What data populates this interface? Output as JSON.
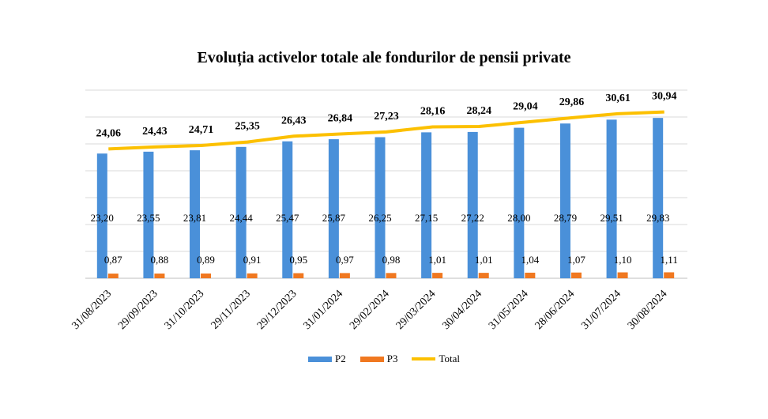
{
  "chart_data": {
    "type": "bar",
    "title": "Evoluția activelor totale ale fondurilor de pensii private",
    "categories": [
      "31/08/2023",
      "29/09/2023",
      "31/10/2023",
      "29/11/2023",
      "29/12/2023",
      "31/01/2024",
      "29/02/2024",
      "29/03/2024",
      "30/04/2024",
      "31/05/2024",
      "28/06/2024",
      "31/07/2024",
      "30/08/2024"
    ],
    "series": [
      {
        "name": "P2",
        "type": "bar",
        "color": "#4a90d9",
        "values": [
          23.2,
          23.55,
          23.81,
          24.44,
          25.47,
          25.87,
          26.25,
          27.15,
          27.22,
          28.0,
          28.79,
          29.51,
          29.83
        ],
        "labels": [
          "23,20",
          "23,55",
          "23,81",
          "24,44",
          "25,47",
          "25,87",
          "26,25",
          "27,15",
          "27,22",
          "28,00",
          "28,79",
          "29,51",
          "29,83"
        ]
      },
      {
        "name": "P3",
        "type": "bar",
        "color": "#f07820",
        "values": [
          0.87,
          0.88,
          0.89,
          0.91,
          0.95,
          0.97,
          0.98,
          1.01,
          1.01,
          1.04,
          1.07,
          1.1,
          1.11
        ],
        "labels": [
          "0,87",
          "0,88",
          "0,89",
          "0,91",
          "0,95",
          "0,97",
          "0,98",
          "1,01",
          "1,01",
          "1,04",
          "1,07",
          "1,10",
          "1,11"
        ]
      },
      {
        "name": "Total",
        "type": "line",
        "color": "#fcc000",
        "values": [
          24.06,
          24.43,
          24.71,
          25.35,
          26.43,
          26.84,
          27.23,
          28.16,
          28.24,
          29.04,
          29.86,
          30.61,
          30.94
        ],
        "labels": [
          "24,06",
          "24,43",
          "24,71",
          "25,35",
          "26,43",
          "26,84",
          "27,23",
          "28,16",
          "28,24",
          "29,04",
          "29,86",
          "30,61",
          "30,94"
        ]
      }
    ],
    "ylim": [
      0,
      35
    ],
    "grid": true,
    "legend": "bottom"
  }
}
